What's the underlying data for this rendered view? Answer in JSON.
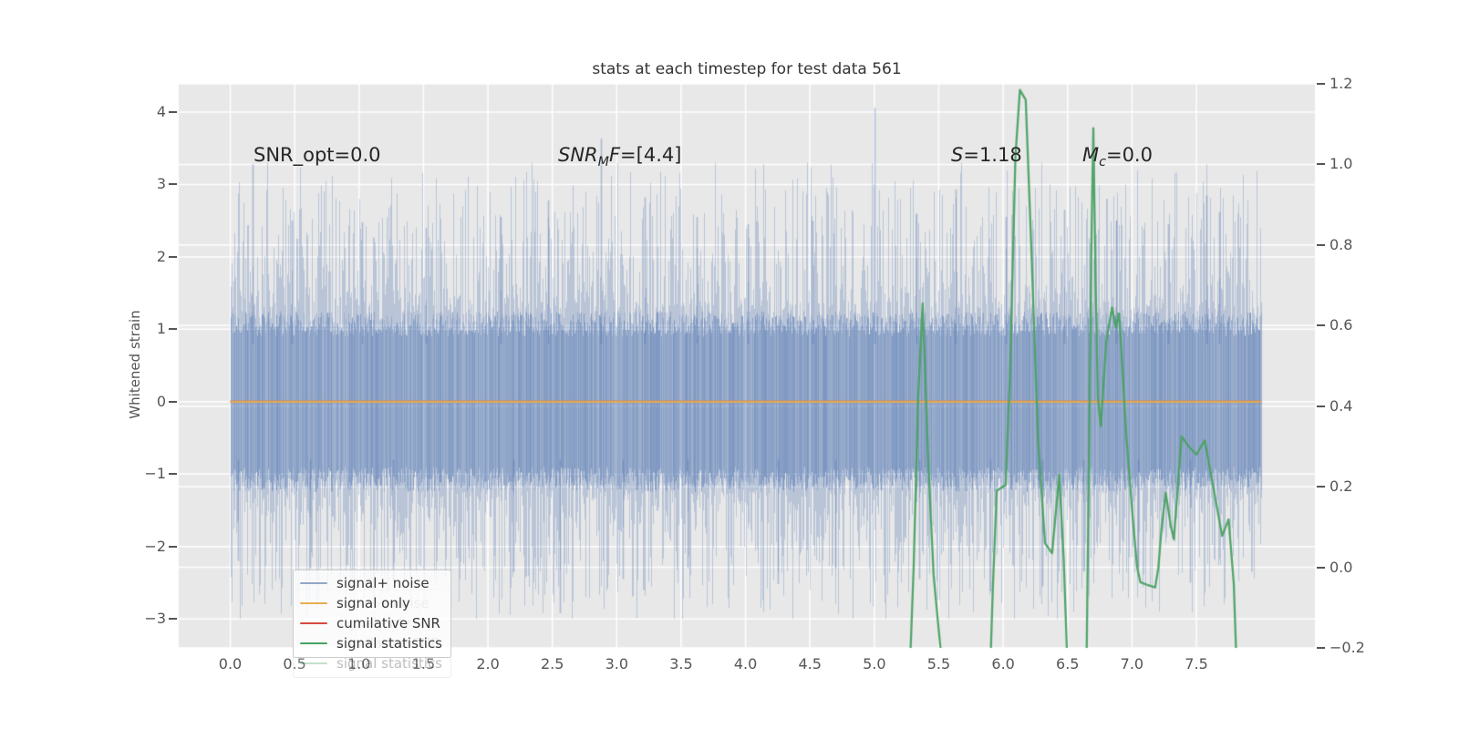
{
  "title": "stats at each timestep for test data 561",
  "axes": {
    "x": {
      "tick_labels": [
        "0.0",
        "0.5",
        "1.0",
        "1.5",
        "2.0",
        "2.5",
        "3.0",
        "3.5",
        "4.0",
        "4.5",
        "5.0",
        "5.5",
        "6.0",
        "6.5",
        "7.0",
        "7.5"
      ],
      "tick_values": [
        0,
        0.5,
        1,
        1.5,
        2,
        2.5,
        3,
        3.5,
        4,
        4.5,
        5,
        5.5,
        6,
        6.5,
        7,
        7.5
      ]
    },
    "y_left": {
      "label": "Whitened strain",
      "tick_labels": [
        "4",
        "3",
        "2",
        "1",
        "0",
        "−1",
        "−2",
        "−3"
      ],
      "tick_values": [
        4,
        3,
        2,
        1,
        0,
        -1,
        -2,
        -3
      ]
    },
    "y_right": {
      "tick_labels": [
        "1.2",
        "1.0",
        "0.8",
        "0.6",
        "0.4",
        "0.2",
        "0.0",
        "−0.2"
      ],
      "tick_values": [
        1.2,
        1.0,
        0.8,
        0.6,
        0.4,
        0.2,
        0.0,
        -0.2
      ]
    }
  },
  "annotations": [
    {
      "id": "snr-opt",
      "text": "SNR_opt=0.0"
    },
    {
      "id": "snr-mf",
      "prefix": "SNR",
      "sub": "M",
      "mid": "F",
      "value": "=[4.4]"
    },
    {
      "id": "s-stat",
      "prefix": "S",
      "sub": "",
      "mid": "",
      "value": "=1.18"
    },
    {
      "id": "m-c",
      "prefix": "M",
      "sub": "c",
      "mid": "",
      "value": "=0.0"
    }
  ],
  "legend": {
    "items": [
      {
        "label": "signal+ noise",
        "color": "#92a6c9"
      },
      {
        "label": "signal only",
        "color": "#e7ae52"
      },
      {
        "label": "cumilative SNR",
        "color": "#d64a3f"
      },
      {
        "label": "signal statistics",
        "color": "#46a363"
      }
    ]
  },
  "chart_data": {
    "type": "line",
    "title": "stats at each timestep for test data 561",
    "xlabel": "",
    "ylabel_left": "Whitened strain",
    "ylabel_right": "",
    "xlim": [
      -0.4,
      8.42
    ],
    "x_data_range": [
      0,
      8
    ],
    "ylim_left": [
      -3.4,
      4.39
    ],
    "ylim_right": [
      -0.2,
      1.2
    ],
    "grid": true,
    "background": "#e8e8e8",
    "grid_color": "#ffffff",
    "series": [
      {
        "name": "signal+ noise",
        "axis": "left",
        "type": "noise",
        "color": "#4C72B0",
        "alpha": 0.55,
        "mean": 0,
        "seed": 20,
        "core_amplitude_range": [
          0.9,
          1.25
        ],
        "typical_spike_max": 2.6,
        "landmark_spikes_positive": [
          [
            0.17,
            3.28
          ],
          [
            0.48,
            2.5
          ],
          [
            1.02,
            2.48
          ],
          [
            1.52,
            2.4
          ],
          [
            2.1,
            2.55
          ],
          [
            2.47,
            2.78
          ],
          [
            2.88,
            3.63
          ],
          [
            3.22,
            2.82
          ],
          [
            3.62,
            2.55
          ],
          [
            4.02,
            2.45
          ],
          [
            4.52,
            2.5
          ],
          [
            5.0,
            4.06
          ],
          [
            5.33,
            2.6
          ],
          [
            5.63,
            2.93
          ],
          [
            6.02,
            2.55
          ],
          [
            6.47,
            2.65
          ],
          [
            6.88,
            2.5
          ],
          [
            7.28,
            2.45
          ],
          [
            7.58,
            2.85
          ],
          [
            7.68,
            2.62
          ]
        ],
        "landmark_spikes_negative": [
          [
            0.06,
            -2.2
          ],
          [
            0.62,
            -2.3
          ],
          [
            1.26,
            -2.48
          ],
          [
            2.2,
            -2.35
          ],
          [
            2.56,
            -2.92
          ],
          [
            3.05,
            -2.45
          ],
          [
            3.55,
            -2.3
          ],
          [
            4.25,
            -2.52
          ],
          [
            4.7,
            -2.3
          ],
          [
            5.35,
            -2.45
          ],
          [
            5.9,
            -2.62
          ],
          [
            6.3,
            -2.55
          ],
          [
            6.62,
            -2.35
          ],
          [
            7.05,
            -2.3
          ],
          [
            7.45,
            -2.5
          ]
        ]
      },
      {
        "name": "signal only",
        "axis": "left",
        "type": "constant",
        "value": 0,
        "color": "#e2a951"
      },
      {
        "name": "cumilative SNR",
        "axis": "left",
        "type": "constant",
        "value": 0,
        "color": "#d64541",
        "visibility": "hidden beneath signal-only line"
      },
      {
        "name": "signal statistics",
        "axis": "right",
        "type": "line_segments",
        "color": "#4aa163",
        "segments": [
          [
            [
              5.27,
              -0.3
            ],
            [
              5.305,
              0.0
            ],
            [
              5.34,
              0.42
            ],
            [
              5.375,
              0.655
            ],
            [
              5.42,
              0.25
            ],
            [
              5.46,
              -0.02
            ],
            [
              5.51,
              -0.19
            ],
            [
              5.555,
              -0.3
            ]
          ],
          [
            [
              5.895,
              -0.3
            ],
            [
              5.92,
              -0.05
            ],
            [
              5.95,
              0.19
            ],
            [
              6.02,
              0.205
            ],
            [
              6.055,
              0.5
            ],
            [
              6.095,
              1.02
            ],
            [
              6.13,
              1.185
            ],
            [
              6.175,
              1.16
            ],
            [
              6.22,
              0.78
            ],
            [
              6.27,
              0.32
            ],
            [
              6.325,
              0.06
            ],
            [
              6.38,
              0.035
            ],
            [
              6.435,
              0.23
            ],
            [
              6.47,
              0.02
            ],
            [
              6.505,
              -0.3
            ]
          ],
          [
            [
              6.645,
              -0.3
            ],
            [
              6.665,
              0.25
            ],
            [
              6.687,
              0.85
            ],
            [
              6.7,
              1.09
            ],
            [
              6.717,
              0.72
            ],
            [
              6.735,
              0.42
            ],
            [
              6.758,
              0.35
            ],
            [
              6.8,
              0.56
            ],
            [
              6.845,
              0.645
            ],
            [
              6.875,
              0.595
            ],
            [
              6.9,
              0.63
            ],
            [
              6.955,
              0.33
            ],
            [
              7.005,
              0.125
            ],
            [
              7.04,
              0.0
            ],
            [
              7.065,
              -0.037
            ],
            [
              7.13,
              -0.045
            ],
            [
              7.18,
              -0.05
            ],
            [
              7.205,
              0.0
            ],
            [
              7.23,
              0.1
            ],
            [
              7.262,
              0.185
            ],
            [
              7.3,
              0.105
            ],
            [
              7.325,
              0.07
            ],
            [
              7.385,
              0.325
            ],
            [
              7.44,
              0.3
            ],
            [
              7.5,
              0.28
            ],
            [
              7.565,
              0.315
            ],
            [
              7.63,
              0.2
            ],
            [
              7.7,
              0.078
            ],
            [
              7.75,
              0.119
            ],
            [
              7.79,
              -0.04
            ],
            [
              7.818,
              -0.3
            ]
          ]
        ]
      }
    ],
    "annotations": [
      "SNR_opt=0.0",
      "SNR_MF=[4.4]",
      "S=1.18",
      "Mc=0.0"
    ]
  }
}
